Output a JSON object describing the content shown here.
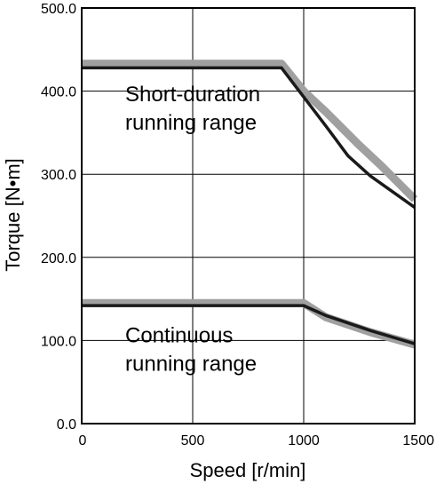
{
  "chart_data": {
    "type": "line",
    "title": "",
    "xlabel": "Speed [r/min]",
    "ylabel": "Torque [N•m]",
    "xlim": [
      0,
      1500
    ],
    "ylim": [
      0,
      500
    ],
    "x_ticks": [
      0,
      500,
      1000,
      1500
    ],
    "y_ticks": [
      0,
      100,
      200,
      300,
      400,
      500
    ],
    "x_tick_labels": [
      "0",
      "500",
      "1000",
      "1500"
    ],
    "y_tick_labels": [
      "0.0",
      "100.0",
      "200.0",
      "300.0",
      "400.0",
      "500.0"
    ],
    "grid": true,
    "legend": "none",
    "series": [
      {
        "band": {
          "x": [
            0,
            900,
            1000,
            1100,
            1250,
            1350,
            1500
          ],
          "y": [
            433,
            433,
            400,
            375,
            335,
            310,
            270
          ]
        },
        "line": {
          "x": [
            0,
            900,
            1000,
            1100,
            1200,
            1300,
            1500
          ],
          "y": [
            428,
            428,
            393,
            358,
            322,
            298,
            260
          ]
        }
      },
      {
        "band": {
          "x": [
            0,
            1000,
            1100,
            1300,
            1500
          ],
          "y": [
            145,
            145,
            128,
            110,
            95
          ]
        },
        "line": {
          "x": [
            0,
            1000,
            1100,
            1300,
            1500
          ],
          "y": [
            142,
            142,
            130,
            112,
            96
          ]
        }
      }
    ],
    "annotations": [
      {
        "lines": [
          "Short-duration",
          "running range"
        ],
        "x": 100,
        "y": 360
      },
      {
        "lines": [
          "Continuous",
          "running range"
        ],
        "x": 100,
        "y": 70
      }
    ],
    "colors": {
      "line": "#1a1a1a",
      "band": "#a0a0a0",
      "grid": "#000000",
      "axis": "#000000"
    }
  }
}
